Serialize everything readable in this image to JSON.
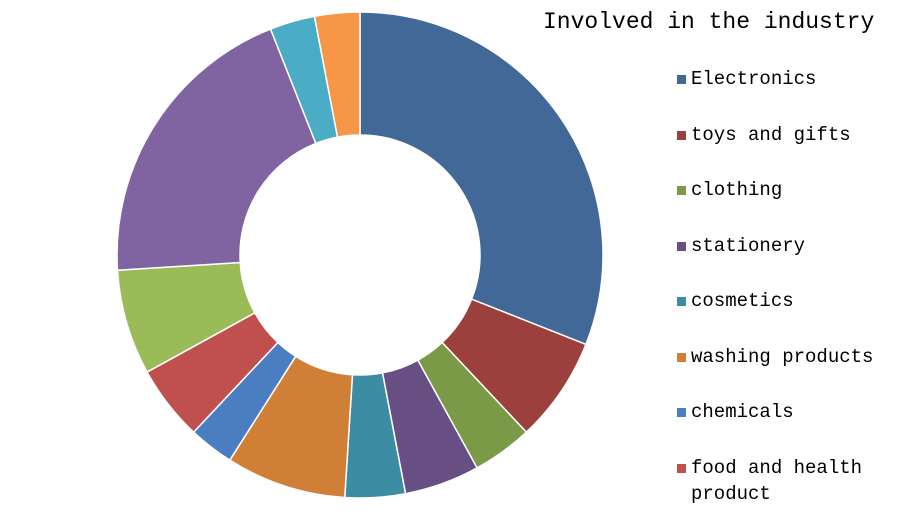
{
  "chart_data": {
    "type": "donut",
    "title": "Involved in the industry",
    "categories": [
      "Electronics",
      "toys and gifts",
      "clothing",
      "stationery",
      "cosmetics",
      "washing products",
      "chemicals",
      "food and health product",
      null,
      null,
      null,
      null
    ],
    "values": [
      31,
      7,
      4,
      5,
      4,
      8,
      3,
      5,
      7,
      20,
      3,
      3
    ],
    "colors": [
      "#416897",
      "#9b403d",
      "#7a9a48",
      "#674f84",
      "#3c8ca3",
      "#d07f36",
      "#4a7ec0",
      "#c0504d",
      "#9bbb59",
      "#8064a2",
      "#4bacc6",
      "#f79646"
    ],
    "legend": "right"
  }
}
